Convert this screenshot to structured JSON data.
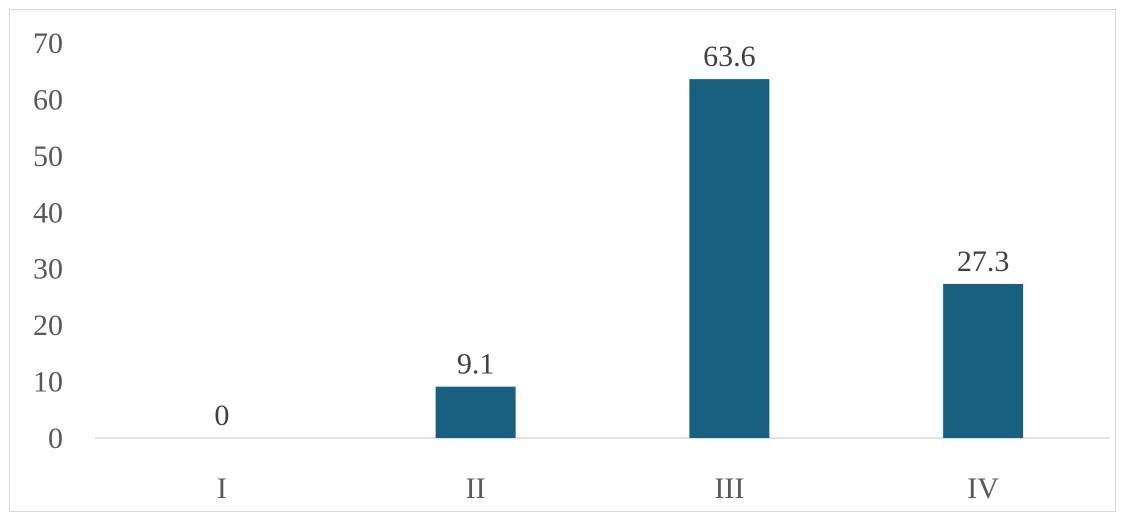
{
  "chart_data": {
    "type": "bar",
    "categories": [
      "I",
      "II",
      "III",
      "IV"
    ],
    "values": [
      0,
      9.1,
      63.6,
      27.3
    ],
    "data_labels": [
      "0",
      "9.1",
      "63.6",
      "27.3"
    ],
    "title": "",
    "xlabel": "",
    "ylabel": "",
    "ylim": [
      0,
      70
    ],
    "yticks": [
      0,
      10,
      20,
      30,
      40,
      50,
      60,
      70
    ],
    "grid": false,
    "legend": "none",
    "bar_color": "#17607f",
    "axis_color": "#d9d9d9"
  }
}
